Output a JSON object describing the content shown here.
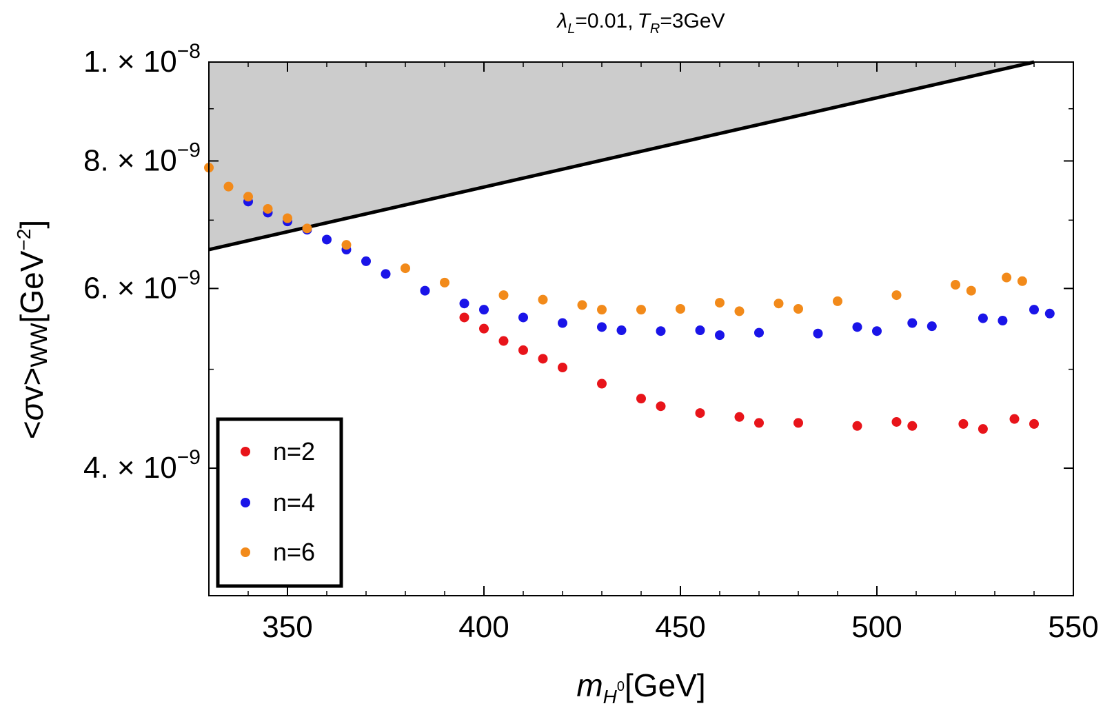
{
  "chart_data": {
    "type": "scatter",
    "title": "λL=0.01, TR=3GeV",
    "title_parts": {
      "lambda_sym": "λ",
      "lambda_sub": "L",
      "lambda_val": "=0.01,",
      "t_sym": "T",
      "t_sub": "R",
      "t_val": "=3GeV"
    },
    "xlabel": "mH⁰[GeV]",
    "xlabel_parts": {
      "m": "m",
      "sub_h": "H",
      "sup_0": "0",
      "rest": "[GeV]"
    },
    "ylabel": "<σv>WW[GeV⁻²]",
    "ylabel_parts": {
      "open": "<",
      "sigma": "σ",
      "v": "v",
      "close": ">",
      "ww": "WW",
      "unit": "[GeV",
      "exp": "−2",
      "end": "]"
    },
    "xlim": [
      330,
      550
    ],
    "ylim": [
      3e-09,
      1e-08
    ],
    "yscale": "log",
    "x_ticks": [
      350,
      400,
      450,
      500,
      550
    ],
    "x_tick_labels": [
      "350",
      "400",
      "450",
      "500",
      "550"
    ],
    "y_ticks": [
      {
        "value": 1e-08,
        "mantissa": "1.",
        "times": "×",
        "base": "10",
        "exp": "−8"
      },
      {
        "value": 8e-09,
        "mantissa": "8.",
        "times": "×",
        "base": "10",
        "exp": "−9"
      },
      {
        "value": 6e-09,
        "mantissa": "6.",
        "times": "×",
        "base": "10",
        "exp": "−9"
      },
      {
        "value": 4e-09,
        "mantissa": "4.",
        "times": "×",
        "base": "10",
        "exp": "−9"
      }
    ],
    "exclusion_line": {
      "x": [
        330,
        540
      ],
      "y": [
        6.55e-09,
        1e-08
      ],
      "fill": "#cccccc",
      "color": "#000000"
    },
    "series": [
      {
        "name": "n=2",
        "color": "#e8141a",
        "x": [
          395,
          400,
          405,
          410,
          415,
          420,
          430,
          440,
          445,
          455,
          465,
          470,
          480,
          495,
          505,
          509,
          522,
          527,
          535,
          540
        ],
        "y": [
          5.62e-09,
          5.48e-09,
          5.33e-09,
          5.22e-09,
          5.12e-09,
          5.02e-09,
          4.84e-09,
          4.68e-09,
          4.6e-09,
          4.53e-09,
          4.49e-09,
          4.43e-09,
          4.43e-09,
          4.4e-09,
          4.44e-09,
          4.4e-09,
          4.42e-09,
          4.37e-09,
          4.47e-09,
          4.42e-09
        ]
      },
      {
        "name": "n=4",
        "color": "#1a14e8",
        "x": [
          340,
          345,
          350,
          355,
          360,
          365,
          370,
          375,
          385,
          395,
          400,
          410,
          420,
          430,
          435,
          445,
          455,
          460,
          470,
          485,
          495,
          500,
          509,
          514,
          527,
          532,
          540,
          544
        ],
        "y": [
          7.3e-09,
          7.12e-09,
          6.98e-09,
          6.85e-09,
          6.7e-09,
          6.55e-09,
          6.38e-09,
          6.2e-09,
          5.97e-09,
          5.8e-09,
          5.72e-09,
          5.62e-09,
          5.55e-09,
          5.5e-09,
          5.46e-09,
          5.45e-09,
          5.46e-09,
          5.4e-09,
          5.43e-09,
          5.42e-09,
          5.5e-09,
          5.45e-09,
          5.55e-09,
          5.51e-09,
          5.61e-09,
          5.58e-09,
          5.72e-09,
          5.67e-09
        ]
      },
      {
        "name": "n=6",
        "color": "#f28a1a",
        "x": [
          330,
          335,
          340,
          345,
          350,
          355,
          365,
          380,
          390,
          405,
          415,
          425,
          430,
          440,
          450,
          460,
          465,
          475,
          480,
          490,
          505,
          520,
          524,
          533,
          537
        ],
        "y": [
          7.88e-09,
          7.55e-09,
          7.38e-09,
          7.18e-09,
          7.03e-09,
          6.87e-09,
          6.62e-09,
          6.28e-09,
          6.08e-09,
          5.91e-09,
          5.85e-09,
          5.78e-09,
          5.72e-09,
          5.72e-09,
          5.73e-09,
          5.81e-09,
          5.7e-09,
          5.8e-09,
          5.73e-09,
          5.83e-09,
          5.91e-09,
          6.05e-09,
          5.97e-09,
          6.15e-09,
          6.1e-09
        ]
      }
    ],
    "legend": {
      "placement": "bottom-left",
      "entries": [
        "n=2",
        "n=4",
        "n=6"
      ]
    },
    "grid": false
  }
}
